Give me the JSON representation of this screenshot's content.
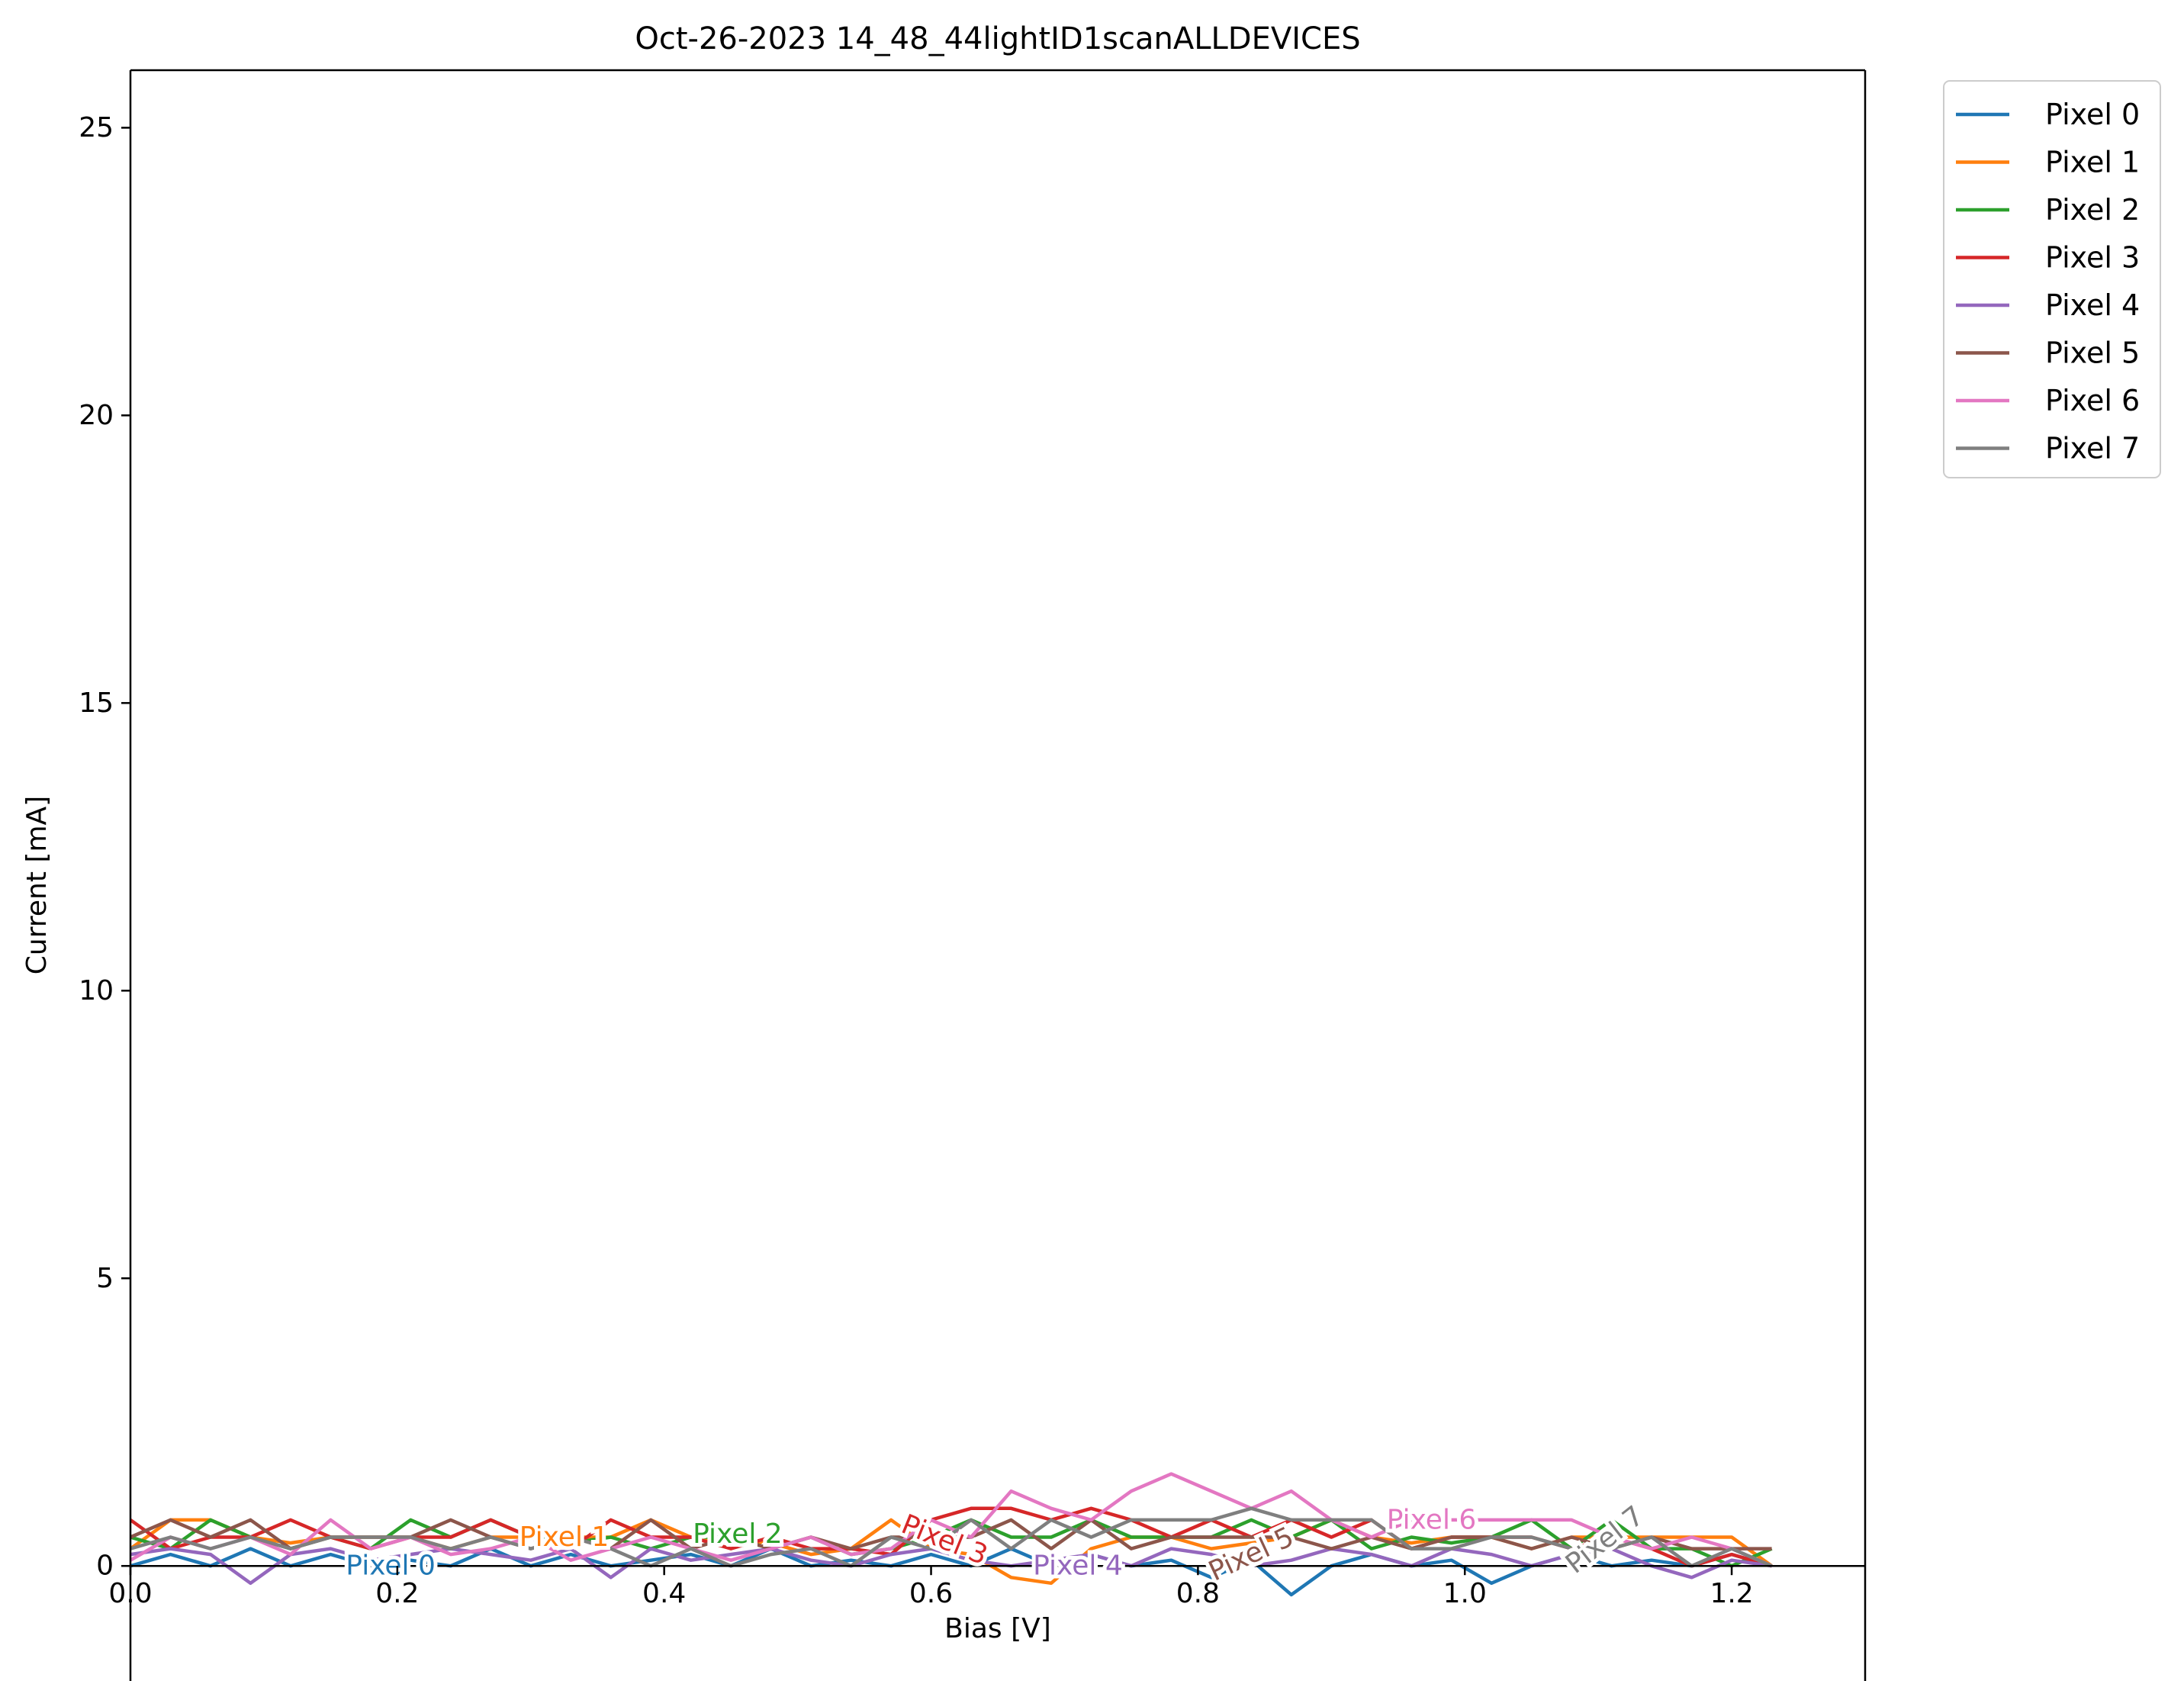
{
  "chart_data": {
    "type": "line",
    "title": "Oct-26-2023 14_48_44lightID1scanALLDEVICES",
    "xlabel": "Bias [V]",
    "ylabel": "Current [mA]",
    "xlim": [
      0.0,
      1.3
    ],
    "ylim": [
      -2.0,
      26.0
    ],
    "xticks": [
      0.0,
      0.2,
      0.4,
      0.6,
      0.8,
      1.0,
      1.2
    ],
    "xtick_labels": [
      "0.0",
      "0.2",
      "0.4",
      "0.6",
      "0.8",
      "1.0",
      "1.2"
    ],
    "yticks": [
      0,
      5,
      10,
      15,
      20,
      25
    ],
    "ytick_labels": [
      "0",
      "5",
      "10",
      "15",
      "20",
      "25"
    ],
    "zero_line": true,
    "grid": false,
    "legend_position": "outside-top-right",
    "x": [
      0.0,
      0.03,
      0.06,
      0.09,
      0.12,
      0.15,
      0.18,
      0.21,
      0.24,
      0.27,
      0.3,
      0.33,
      0.36,
      0.39,
      0.42,
      0.45,
      0.48,
      0.51,
      0.54,
      0.57,
      0.6,
      0.63,
      0.66,
      0.69,
      0.72,
      0.75,
      0.78,
      0.81,
      0.84,
      0.87,
      0.9,
      0.93,
      0.96,
      0.99,
      1.02,
      1.05,
      1.08,
      1.11,
      1.14,
      1.17,
      1.2,
      1.23
    ],
    "series": [
      {
        "name": "Pixel 0",
        "color": "#1f77b4",
        "label_x": 0.195,
        "label_y": 0.0,
        "label_angle": 0,
        "values": [
          0.0,
          0.2,
          0.0,
          0.3,
          0.0,
          0.2,
          0.0,
          0.1,
          0.0,
          0.3,
          0.0,
          0.2,
          0.0,
          0.1,
          0.2,
          0.0,
          0.3,
          0.0,
          0.1,
          0.0,
          0.2,
          0.0,
          0.3,
          0.0,
          0.2,
          0.0,
          0.1,
          -0.2,
          0.1,
          -0.5,
          0.0,
          0.2,
          0.0,
          0.1,
          -0.3,
          0.0,
          0.2,
          0.0,
          0.1,
          0.0,
          0.2,
          0.0
        ]
      },
      {
        "name": "Pixel 1",
        "color": "#ff7f0e",
        "label_x": 0.325,
        "label_y": 0.5,
        "label_angle": 0,
        "values": [
          0.3,
          0.8,
          0.8,
          0.5,
          0.4,
          0.5,
          0.5,
          0.5,
          0.3,
          0.5,
          0.5,
          0.5,
          0.5,
          0.8,
          0.5,
          0.4,
          0.4,
          0.2,
          0.3,
          0.8,
          0.3,
          0.2,
          -0.2,
          -0.3,
          0.3,
          0.5,
          0.5,
          0.3,
          0.4,
          0.5,
          0.8,
          0.5,
          0.4,
          0.5,
          0.5,
          0.3,
          0.5,
          0.5,
          0.5,
          0.5,
          0.5,
          0.0
        ]
      },
      {
        "name": "Pixel 2",
        "color": "#2ca02c",
        "label_x": 0.455,
        "label_y": 0.55,
        "label_angle": 0,
        "values": [
          0.5,
          0.3,
          0.8,
          0.5,
          0.3,
          0.5,
          0.3,
          0.8,
          0.5,
          0.8,
          0.5,
          0.4,
          0.5,
          0.3,
          0.5,
          0.5,
          0.3,
          0.5,
          0.2,
          0.3,
          0.5,
          0.8,
          0.5,
          0.5,
          0.8,
          0.5,
          0.5,
          0.5,
          0.8,
          0.5,
          0.8,
          0.3,
          0.5,
          0.4,
          0.5,
          0.8,
          0.3,
          0.8,
          0.3,
          0.3,
          0.0,
          0.3
        ]
      },
      {
        "name": "Pixel 3",
        "color": "#d62728",
        "label_x": 0.61,
        "label_y": 0.45,
        "label_angle": 22,
        "values": [
          0.8,
          0.3,
          0.5,
          0.5,
          0.8,
          0.5,
          0.3,
          0.5,
          0.5,
          0.8,
          0.5,
          0.3,
          0.8,
          0.5,
          0.5,
          0.3,
          0.5,
          0.3,
          0.3,
          0.2,
          0.8,
          1.0,
          1.0,
          0.8,
          1.0,
          0.8,
          0.5,
          0.8,
          0.5,
          0.8,
          0.5,
          0.8,
          0.3,
          0.5,
          0.5,
          0.5,
          0.3,
          0.5,
          0.3,
          0.0,
          0.2,
          0.0
        ]
      },
      {
        "name": "Pixel 4",
        "color": "#9467bd",
        "label_x": 0.71,
        "label_y": 0.0,
        "label_angle": 0,
        "values": [
          0.2,
          0.3,
          0.2,
          -0.3,
          0.2,
          0.3,
          0.1,
          0.2,
          0.3,
          0.2,
          0.1,
          0.3,
          -0.2,
          0.3,
          0.1,
          0.2,
          0.3,
          0.1,
          0.0,
          0.2,
          0.3,
          0.1,
          0.0,
          0.1,
          0.2,
          0.0,
          0.3,
          0.2,
          0.0,
          0.1,
          0.3,
          0.2,
          0.0,
          0.3,
          0.2,
          0.0,
          0.2,
          0.3,
          0.0,
          -0.2,
          0.1,
          0.0
        ]
      },
      {
        "name": "Pixel 5",
        "color": "#8c564b",
        "label_x": 0.84,
        "label_y": 0.2,
        "label_angle": -25,
        "values": [
          0.5,
          0.8,
          0.5,
          0.8,
          0.3,
          0.5,
          0.5,
          0.5,
          0.8,
          0.5,
          0.3,
          0.5,
          0.3,
          0.8,
          0.3,
          0.5,
          0.3,
          0.5,
          0.3,
          0.5,
          0.5,
          0.5,
          0.8,
          0.3,
          0.8,
          0.3,
          0.5,
          0.5,
          0.5,
          0.5,
          0.3,
          0.5,
          0.3,
          0.5,
          0.5,
          0.3,
          0.5,
          0.3,
          0.5,
          0.3,
          0.3,
          0.3
        ]
      },
      {
        "name": "Pixel 6",
        "color": "#e377c2",
        "label_x": 0.975,
        "label_y": 0.8,
        "label_angle": 0,
        "values": [
          0.1,
          0.5,
          0.3,
          0.5,
          0.2,
          0.8,
          0.3,
          0.5,
          0.2,
          0.3,
          0.5,
          0.1,
          0.3,
          0.5,
          0.3,
          0.1,
          0.3,
          0.5,
          0.2,
          0.3,
          0.8,
          0.5,
          1.3,
          1.0,
          0.8,
          1.3,
          1.6,
          1.3,
          1.0,
          1.3,
          0.8,
          0.5,
          0.8,
          0.8,
          0.8,
          0.8,
          0.8,
          0.5,
          0.3,
          0.5,
          0.3,
          0.0
        ]
      },
      {
        "name": "Pixel 7",
        "color": "#7f7f7f",
        "label_x": 1.105,
        "label_y": 0.45,
        "label_angle": -38,
        "values": [
          0.3,
          0.5,
          0.3,
          0.5,
          0.3,
          0.5,
          0.5,
          0.5,
          0.3,
          0.5,
          0.3,
          0.5,
          0.3,
          0.0,
          0.3,
          0.0,
          0.2,
          0.3,
          0.0,
          0.5,
          0.3,
          0.8,
          0.3,
          0.8,
          0.5,
          0.8,
          0.8,
          0.8,
          1.0,
          0.8,
          0.8,
          0.8,
          0.3,
          0.3,
          0.5,
          0.5,
          0.3,
          0.3,
          0.5,
          0.0,
          0.3,
          0.0
        ]
      }
    ]
  }
}
